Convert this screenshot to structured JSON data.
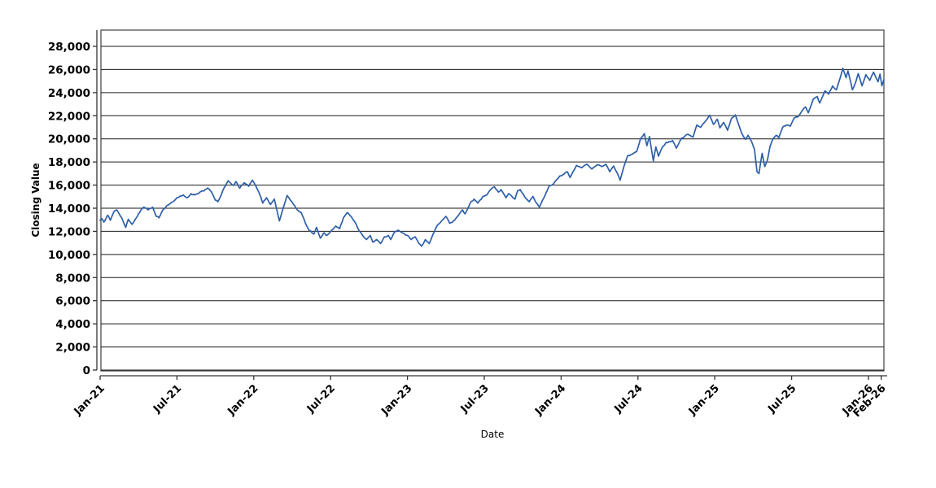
{
  "chart_data": {
    "type": "line",
    "title": "",
    "xlabel": "Date",
    "ylabel": "Closing Value",
    "x_unit": "months since Jan-2021",
    "xlim": [
      0,
      61.25
    ],
    "ylim": [
      0,
      29400
    ],
    "grid": "horizontal",
    "legend": "none",
    "x_ticks": [
      {
        "t": 0,
        "label": "Jan-21"
      },
      {
        "t": 6,
        "label": "Jul-21"
      },
      {
        "t": 12,
        "label": "Jan-22"
      },
      {
        "t": 18,
        "label": "Jul-22"
      },
      {
        "t": 24,
        "label": "Jan-23"
      },
      {
        "t": 30,
        "label": "Jul-23"
      },
      {
        "t": 36,
        "label": "Jan-24"
      },
      {
        "t": 42,
        "label": "Jul-24"
      },
      {
        "t": 48,
        "label": "Jan-25"
      },
      {
        "t": 54,
        "label": "Jul-25"
      },
      {
        "t": 60,
        "label": "Jan-26"
      },
      {
        "t": 61,
        "label": "Feb-26"
      }
    ],
    "y_ticks": [
      0,
      2000,
      4000,
      6000,
      8000,
      10000,
      12000,
      14000,
      16000,
      18000,
      20000,
      22000,
      24000,
      26000,
      28000
    ],
    "series": [
      {
        "name": "Closing Value",
        "color": "#2d5fa8",
        "points": [
          [
            0,
            12950
          ],
          [
            0.15,
            13100
          ],
          [
            0.3,
            12800
          ],
          [
            0.6,
            13400
          ],
          [
            0.8,
            12950
          ],
          [
            1.1,
            13740
          ],
          [
            1.3,
            13860
          ],
          [
            1.7,
            13150
          ],
          [
            2.0,
            12340
          ],
          [
            2.2,
            13040
          ],
          [
            2.5,
            12600
          ],
          [
            2.9,
            13280
          ],
          [
            3.2,
            13860
          ],
          [
            3.4,
            14090
          ],
          [
            3.75,
            13860
          ],
          [
            4.1,
            14090
          ],
          [
            4.4,
            13280
          ],
          [
            4.6,
            13160
          ],
          [
            4.9,
            13860
          ],
          [
            5.2,
            14210
          ],
          [
            5.7,
            14560
          ],
          [
            6.0,
            14910
          ],
          [
            6.5,
            15140
          ],
          [
            6.8,
            14910
          ],
          [
            7.1,
            15260
          ],
          [
            7.4,
            15140
          ],
          [
            7.8,
            15400
          ],
          [
            8.1,
            15490
          ],
          [
            8.4,
            15750
          ],
          [
            8.7,
            15400
          ],
          [
            9.0,
            14700
          ],
          [
            9.2,
            14560
          ],
          [
            9.45,
            15140
          ],
          [
            9.7,
            15800
          ],
          [
            10.0,
            16380
          ],
          [
            10.4,
            15960
          ],
          [
            10.6,
            16310
          ],
          [
            10.9,
            15730
          ],
          [
            11.25,
            16200
          ],
          [
            11.6,
            15900
          ],
          [
            11.9,
            16430
          ],
          [
            12.2,
            15840
          ],
          [
            12.4,
            15380
          ],
          [
            12.7,
            14440
          ],
          [
            13.0,
            14910
          ],
          [
            13.3,
            14330
          ],
          [
            13.6,
            14790
          ],
          [
            14.0,
            12900
          ],
          [
            14.6,
            15100
          ],
          [
            15.1,
            14330
          ],
          [
            15.4,
            13860
          ],
          [
            15.7,
            13630
          ],
          [
            16.0,
            12810
          ],
          [
            16.3,
            12110
          ],
          [
            16.7,
            11760
          ],
          [
            16.9,
            12340
          ],
          [
            17.2,
            11410
          ],
          [
            17.5,
            11880
          ],
          [
            17.7,
            11640
          ],
          [
            18.1,
            12110
          ],
          [
            18.4,
            12460
          ],
          [
            18.7,
            12230
          ],
          [
            19.0,
            13160
          ],
          [
            19.3,
            13630
          ],
          [
            19.6,
            13280
          ],
          [
            19.9,
            12800
          ],
          [
            20.2,
            12110
          ],
          [
            20.5,
            11640
          ],
          [
            20.8,
            11290
          ],
          [
            21.1,
            11640
          ],
          [
            21.3,
            11060
          ],
          [
            21.6,
            11290
          ],
          [
            21.9,
            10940
          ],
          [
            22.2,
            11530
          ],
          [
            22.5,
            11640
          ],
          [
            22.7,
            11290
          ],
          [
            23.0,
            11990
          ],
          [
            23.3,
            12100
          ],
          [
            23.6,
            11870
          ],
          [
            24.0,
            11640
          ],
          [
            24.3,
            11290
          ],
          [
            24.6,
            11530
          ],
          [
            24.9,
            10940
          ],
          [
            25.1,
            10710
          ],
          [
            25.4,
            11290
          ],
          [
            25.7,
            10940
          ],
          [
            26.0,
            11760
          ],
          [
            26.3,
            12460
          ],
          [
            26.6,
            12810
          ],
          [
            27.0,
            13300
          ],
          [
            27.3,
            12700
          ],
          [
            27.6,
            12900
          ],
          [
            27.8,
            13150
          ],
          [
            28.3,
            13860
          ],
          [
            28.5,
            13510
          ],
          [
            28.9,
            14440
          ],
          [
            29.2,
            14790
          ],
          [
            29.5,
            14440
          ],
          [
            29.9,
            15020
          ],
          [
            30.2,
            15140
          ],
          [
            30.5,
            15610
          ],
          [
            30.8,
            15840
          ],
          [
            31.1,
            15400
          ],
          [
            31.3,
            15610
          ],
          [
            31.7,
            14910
          ],
          [
            31.9,
            15260
          ],
          [
            32.4,
            14790
          ],
          [
            32.6,
            15500
          ],
          [
            32.8,
            15610
          ],
          [
            33.2,
            14910
          ],
          [
            33.5,
            14560
          ],
          [
            33.8,
            15020
          ],
          [
            34.0,
            14560
          ],
          [
            34.3,
            14090
          ],
          [
            34.8,
            15260
          ],
          [
            35.1,
            15960
          ],
          [
            35.4,
            16100
          ],
          [
            35.9,
            16790
          ],
          [
            36.5,
            17140
          ],
          [
            36.7,
            16660
          ],
          [
            37.2,
            17700
          ],
          [
            37.6,
            17500
          ],
          [
            38.0,
            17800
          ],
          [
            38.4,
            17400
          ],
          [
            38.8,
            17750
          ],
          [
            39.2,
            17600
          ],
          [
            39.5,
            17800
          ],
          [
            39.8,
            17150
          ],
          [
            40.1,
            17650
          ],
          [
            40.4,
            17000
          ],
          [
            40.6,
            16430
          ],
          [
            40.9,
            17590
          ],
          [
            41.2,
            18550
          ],
          [
            41.6,
            18700
          ],
          [
            41.9,
            18900
          ],
          [
            42.2,
            20000
          ],
          [
            42.5,
            20450
          ],
          [
            42.7,
            19400
          ],
          [
            42.9,
            20200
          ],
          [
            43.2,
            18100
          ],
          [
            43.4,
            19300
          ],
          [
            43.6,
            18500
          ],
          [
            43.9,
            19300
          ],
          [
            44.2,
            19690
          ],
          [
            44.7,
            19850
          ],
          [
            45.0,
            19200
          ],
          [
            45.4,
            20050
          ],
          [
            45.9,
            20390
          ],
          [
            46.3,
            20150
          ],
          [
            46.6,
            21200
          ],
          [
            46.9,
            21000
          ],
          [
            47.3,
            21560
          ],
          [
            47.6,
            22050
          ],
          [
            47.9,
            21250
          ],
          [
            48.2,
            21700
          ],
          [
            48.4,
            20950
          ],
          [
            48.7,
            21420
          ],
          [
            49.0,
            20750
          ],
          [
            49.3,
            21770
          ],
          [
            49.6,
            22070
          ],
          [
            50.1,
            20500
          ],
          [
            50.4,
            19950
          ],
          [
            50.6,
            20300
          ],
          [
            50.9,
            19700
          ],
          [
            51.1,
            19100
          ],
          [
            51.3,
            17150
          ],
          [
            51.45,
            17000
          ],
          [
            51.7,
            18750
          ],
          [
            51.9,
            17600
          ],
          [
            52.1,
            18100
          ],
          [
            52.3,
            19300
          ],
          [
            52.55,
            20000
          ],
          [
            52.8,
            20300
          ],
          [
            53.0,
            20100
          ],
          [
            53.3,
            21000
          ],
          [
            53.6,
            21200
          ],
          [
            53.9,
            21100
          ],
          [
            54.2,
            21800
          ],
          [
            54.5,
            21900
          ],
          [
            54.8,
            22400
          ],
          [
            55.1,
            22750
          ],
          [
            55.3,
            22260
          ],
          [
            55.7,
            23450
          ],
          [
            56.0,
            23660
          ],
          [
            56.2,
            23100
          ],
          [
            56.6,
            24150
          ],
          [
            56.9,
            23870
          ],
          [
            57.2,
            24570
          ],
          [
            57.5,
            24240
          ],
          [
            57.8,
            25300
          ],
          [
            58.0,
            26110
          ],
          [
            58.25,
            25290
          ],
          [
            58.4,
            25880
          ],
          [
            58.75,
            24240
          ],
          [
            59.0,
            24900
          ],
          [
            59.2,
            25640
          ],
          [
            59.5,
            24590
          ],
          [
            59.8,
            25550
          ],
          [
            60.1,
            25060
          ],
          [
            60.4,
            25760
          ],
          [
            60.75,
            24940
          ],
          [
            60.9,
            25600
          ],
          [
            61.05,
            24590
          ],
          [
            61.2,
            25100
          ]
        ]
      }
    ]
  },
  "style": {
    "background": "#ffffff",
    "grid_color": "#1a1a1a",
    "frame_color": "#4d4d4d",
    "axis_color": "#333333",
    "tick_label_color": "#000000",
    "line_color": "#2d5fa8"
  }
}
